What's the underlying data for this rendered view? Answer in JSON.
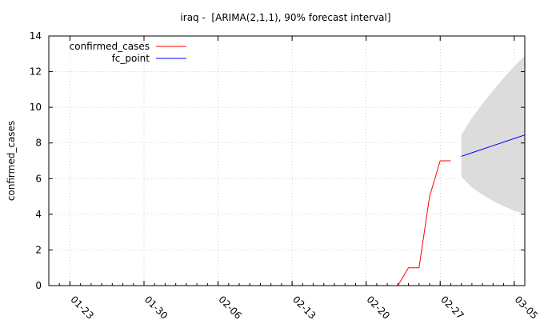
{
  "chart_data": {
    "type": "line",
    "title": "iraq -  [ARIMA(2,1,1), 90% forecast interval]",
    "xlabel": "",
    "ylabel": "confirmed_cases",
    "ylim": [
      0,
      14
    ],
    "xlim": [
      "2020-01-21",
      "2020-03-06"
    ],
    "x_tick_format": "MM-DD",
    "x_ticks": [
      "2020-01-23",
      "2020-01-30",
      "2020-02-06",
      "2020-02-13",
      "2020-02-20",
      "2020-02-27",
      "2020-03-05"
    ],
    "x_tick_labels": [
      "01-23",
      "01-30",
      "02-06",
      "02-13",
      "02-20",
      "02-27",
      "03-05"
    ],
    "y_ticks": [
      0,
      2,
      4,
      6,
      8,
      10,
      12,
      14
    ],
    "y_tick_labels": [
      "0",
      "2",
      "4",
      "6",
      "8",
      "10",
      "12",
      "14"
    ],
    "grid": true,
    "legend_position": "top-left",
    "series": [
      {
        "name": "confirmed_cases",
        "color": "#ff0000",
        "points": [
          [
            "2020-02-22",
            0
          ],
          [
            "2020-02-23",
            0
          ],
          [
            "2020-02-24",
            1
          ],
          [
            "2020-02-25",
            1
          ],
          [
            "2020-02-26",
            5
          ],
          [
            "2020-02-27",
            7
          ],
          [
            "2020-02-28",
            7
          ]
        ]
      },
      {
        "name": "fc_point",
        "color": "#0000ff",
        "points": [
          [
            "2020-02-29",
            7.25
          ],
          [
            "2020-03-01",
            7.45
          ],
          [
            "2020-03-02",
            7.65
          ],
          [
            "2020-03-03",
            7.85
          ],
          [
            "2020-03-04",
            8.05
          ],
          [
            "2020-03-05",
            8.25
          ],
          [
            "2020-03-06",
            8.45
          ]
        ]
      }
    ],
    "forecast_interval": {
      "level": "90%",
      "color": "#dcdcdc",
      "points": [
        [
          "2020-02-29",
          6.1,
          8.45
        ],
        [
          "2020-03-01",
          5.5,
          9.4
        ],
        [
          "2020-03-02",
          5.1,
          10.2
        ],
        [
          "2020-03-03",
          4.75,
          10.95
        ],
        [
          "2020-03-04",
          4.45,
          11.65
        ],
        [
          "2020-03-05",
          4.2,
          12.3
        ],
        [
          "2020-03-06",
          4.0,
          12.9
        ]
      ]
    }
  }
}
